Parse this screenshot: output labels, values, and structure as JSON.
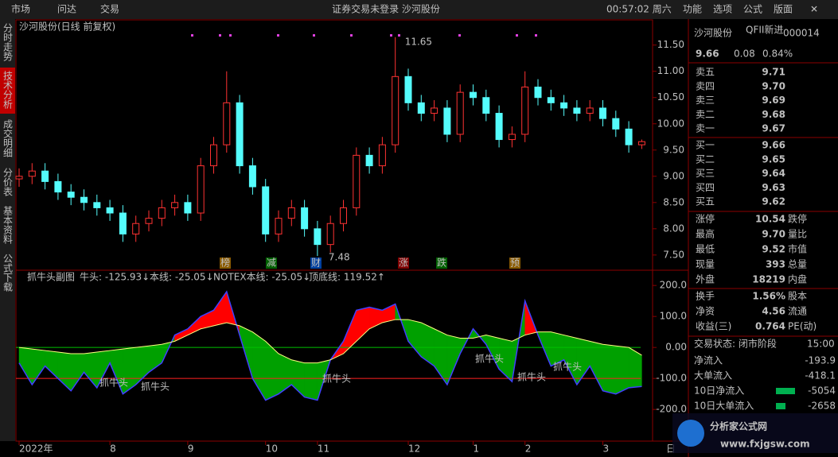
{
  "topbar": {
    "menu": [
      "市场",
      "问达",
      "交易"
    ],
    "notice": "证券交易未登录  沙河股份",
    "clock": "00:57:02 周六",
    "tools": [
      "功能",
      "选项",
      "公式",
      "版面"
    ]
  },
  "tabs": [
    "分时走势",
    "技术分析",
    "成交明细",
    "分价表",
    "基本资料",
    "公式下载"
  ],
  "chart_data": [
    {
      "type": "candlestick",
      "title": "沙河股份(日线 前复权)",
      "open": [
        8.95,
        9.0,
        9.1,
        8.9,
        8.7,
        8.6,
        8.5,
        8.4,
        8.3,
        7.9,
        8.1,
        8.2,
        8.4,
        8.5,
        8.3,
        9.2,
        9.6,
        10.4,
        9.2,
        8.8,
        7.9,
        8.2,
        8.4,
        8.0,
        7.7,
        8.1,
        8.4,
        9.4,
        9.2,
        9.6,
        10.9,
        10.4,
        10.2,
        10.3,
        9.8,
        10.6,
        10.5,
        10.2,
        9.7,
        9.8,
        10.7,
        10.5,
        10.4,
        10.3,
        10.2,
        10.3,
        10.1,
        9.9,
        9.6
      ],
      "high": [
        9.15,
        9.25,
        9.25,
        9.05,
        8.85,
        8.75,
        8.65,
        8.55,
        8.45,
        8.25,
        8.35,
        8.55,
        8.65,
        8.65,
        9.35,
        9.75,
        11.0,
        10.55,
        9.35,
        8.95,
        8.35,
        8.55,
        8.55,
        8.15,
        8.25,
        8.55,
        9.55,
        9.55,
        9.75,
        11.65,
        11.05,
        10.55,
        10.45,
        10.45,
        10.75,
        10.75,
        10.65,
        10.35,
        9.95,
        11.0,
        10.85,
        10.65,
        10.55,
        10.45,
        10.45,
        10.45,
        10.25,
        10.05,
        9.7
      ],
      "low": [
        8.8,
        8.85,
        8.75,
        8.55,
        8.45,
        8.35,
        8.25,
        8.15,
        7.75,
        7.75,
        7.95,
        8.05,
        8.25,
        8.15,
        8.15,
        9.05,
        9.45,
        9.05,
        8.65,
        7.75,
        7.75,
        8.05,
        7.85,
        7.48,
        7.55,
        7.95,
        8.25,
        9.05,
        9.05,
        9.45,
        10.25,
        10.05,
        10.05,
        9.65,
        9.65,
        10.35,
        10.05,
        9.55,
        9.55,
        9.65,
        10.35,
        10.25,
        10.15,
        10.05,
        10.05,
        9.95,
        9.75,
        9.45,
        9.52
      ],
      "close": [
        9.0,
        9.1,
        8.9,
        8.7,
        8.6,
        8.5,
        8.4,
        8.3,
        7.9,
        8.1,
        8.2,
        8.4,
        8.5,
        8.3,
        9.2,
        9.6,
        10.4,
        9.2,
        8.8,
        7.9,
        8.2,
        8.4,
        8.0,
        7.7,
        8.1,
        8.4,
        9.4,
        9.2,
        9.6,
        10.9,
        10.4,
        10.2,
        10.3,
        9.8,
        10.6,
        10.5,
        10.2,
        9.7,
        9.8,
        10.7,
        10.5,
        10.4,
        10.3,
        10.2,
        10.3,
        10.1,
        9.9,
        9.6,
        9.66
      ],
      "up_color": "#ff3232",
      "down_color": "#54fcfc",
      "ylim": [
        7.21,
        11.98
      ],
      "yticks": [
        {
          "value": 7.5,
          "label": "7.50"
        },
        {
          "value": 8,
          "label": "8.00"
        },
        {
          "value": 8.5,
          "label": "8.50"
        },
        {
          "value": 9,
          "label": "9.00"
        },
        {
          "value": 9.5,
          "label": "9.50"
        },
        {
          "value": 10,
          "label": "10.00"
        },
        {
          "value": 10.5,
          "label": "10.50"
        },
        {
          "value": 11,
          "label": "11.00"
        },
        {
          "value": 11.5,
          "label": "11.50"
        }
      ],
      "xticks": [
        {
          "value": 0,
          "label": "2022年"
        },
        {
          "value": 7,
          "label": "8"
        },
        {
          "value": 13,
          "label": "9"
        },
        {
          "value": 19,
          "label": "10"
        },
        {
          "value": 23,
          "label": "11"
        },
        {
          "value": 30,
          "label": "12"
        },
        {
          "value": 35,
          "label": "1"
        },
        {
          "value": 39,
          "label": "2"
        },
        {
          "value": 45,
          "label": "3"
        }
      ],
      "events": [
        "榜",
        "减",
        "财",
        "涨",
        "跌",
        "预"
      ],
      "period": "日"
    },
    {
      "type": "indicator",
      "title": "抓牛头副图",
      "readouts": [
        "牛头: -125.93↓",
        "本线: -25.05↓",
        "NOTEX本线: -25.05↓",
        "顶底线: 119.52↑"
      ],
      "niu": [
        -50,
        -120,
        -60,
        -100,
        -140,
        -80,
        -130,
        -50,
        -150,
        -120,
        -80,
        -50,
        40,
        60,
        100,
        120,
        180,
        40,
        -100,
        -170,
        -150,
        -120,
        -160,
        -170,
        -40,
        20,
        120,
        130,
        120,
        140,
        20,
        -30,
        -60,
        -120,
        -20,
        60,
        10,
        -70,
        -110,
        150,
        40,
        -60,
        -40,
        -120,
        -60,
        -140,
        -150,
        -130,
        -125.93
      ],
      "ben": [
        0,
        -5,
        -10,
        -15,
        -20,
        -20,
        -15,
        -10,
        -5,
        0,
        5,
        10,
        20,
        40,
        60,
        70,
        80,
        70,
        50,
        20,
        -20,
        -40,
        -50,
        -50,
        -40,
        -20,
        20,
        60,
        80,
        90,
        90,
        80,
        60,
        40,
        30,
        30,
        40,
        30,
        20,
        40,
        50,
        50,
        40,
        30,
        20,
        10,
        5,
        0,
        -25.05
      ],
      "above_color": "#ff0000",
      "below_color": "#00a000",
      "ylim": [
        -297,
        244
      ],
      "yticks": [
        {
          "value": 200,
          "label": "200.0"
        },
        {
          "value": 100,
          "label": "100.0"
        },
        {
          "value": 0,
          "label": "0.00"
        },
        {
          "value": -100,
          "label": "-100.0"
        },
        {
          "value": -200,
          "label": "-200.0"
        }
      ],
      "annotations": [
        "抓牛头",
        "抓牛头",
        "抓牛头",
        "抓牛头",
        "抓牛头",
        "抓牛头"
      ]
    }
  ],
  "quote": {
    "name": "沙河股份",
    "tag": "QFII新进",
    "code": "000014",
    "price": "9.66",
    "change": "0.08",
    "pct": "0.84%",
    "asks": [
      [
        "卖五",
        "9.71"
      ],
      [
        "卖四",
        "9.70"
      ],
      [
        "卖三",
        "9.69"
      ],
      [
        "卖二",
        "9.68"
      ],
      [
        "卖一",
        "9.67"
      ]
    ],
    "bids": [
      [
        "买一",
        "9.66"
      ],
      [
        "买二",
        "9.65"
      ],
      [
        "买三",
        "9.64"
      ],
      [
        "买四",
        "9.63"
      ],
      [
        "买五",
        "9.62"
      ]
    ],
    "stats": [
      [
        "涨停",
        "10.54",
        "跌停"
      ],
      [
        "最高",
        "9.70",
        "量比"
      ],
      [
        "最低",
        "9.52",
        "市值"
      ],
      [
        "现量",
        "393",
        "总量"
      ],
      [
        "外盘",
        "18219",
        "内盘"
      ]
    ],
    "stats2": [
      [
        "换手",
        "1.56%",
        "股本"
      ],
      [
        "净资",
        "4.56",
        "流通"
      ],
      [
        "收益(三)",
        "0.764",
        "PE(动)"
      ]
    ],
    "status": [
      "交易状态: 闭市阶段",
      "15:00"
    ],
    "flows": [
      [
        "净流入",
        "-193.9"
      ],
      [
        "大单流入",
        "-418.1"
      ],
      [
        "10日净流入",
        "-5054"
      ],
      [
        "10日大单流入",
        "-2658"
      ]
    ]
  },
  "watermark": {
    "title": "分析家公式网",
    "url": "www.fxjgsw.com"
  }
}
